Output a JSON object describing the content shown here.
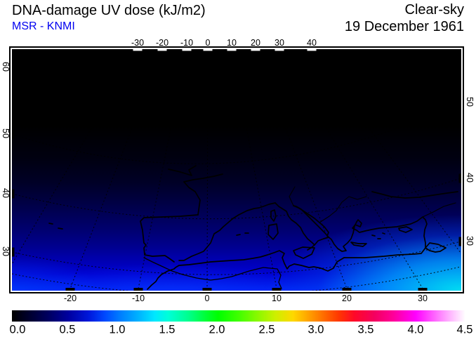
{
  "header": {
    "title": "DNA-damage UV dose (kJ/m2)",
    "source": "MSR - KNMI",
    "condition": "Clear-sky",
    "date": "19 December 1961"
  },
  "chart_data": {
    "type": "heatmap",
    "title": "DNA-damage UV dose (kJ/m2)",
    "source": "MSR - KNMI",
    "condition": "Clear-sky",
    "date": "19 December 1961",
    "region": "Europe / Mediterranean / North Africa, tilted satellite-view projection",
    "units": "kJ/m2",
    "axes": {
      "lon_ticks_top": [
        "-30",
        "-20",
        "-10",
        "0",
        "10",
        "20",
        "30",
        "40"
      ],
      "lon_ticks_bottom": [
        "-20",
        "-10",
        "0",
        "10",
        "20",
        "30"
      ],
      "lat_ticks_left": [
        "60",
        "50",
        "40",
        "30"
      ],
      "lat_ticks_right": [
        "50",
        "40",
        "30"
      ],
      "grid": "dashed graticule lines"
    },
    "colorbar": {
      "min": 0.0,
      "max": 4.5,
      "tick_labels": [
        "0.0",
        "0.5",
        "1.0",
        "1.5",
        "2.0",
        "2.5",
        "3.0",
        "3.5",
        "4.0",
        "4.5"
      ],
      "gradient_stops": [
        {
          "value": 0.0,
          "color": "#000000"
        },
        {
          "value": 0.5,
          "color": "#0000a0"
        },
        {
          "value": 1.0,
          "color": "#0078ff"
        },
        {
          "value": 1.5,
          "color": "#00ffd8"
        },
        {
          "value": 2.0,
          "color": "#00ff00"
        },
        {
          "value": 2.5,
          "color": "#b0f400"
        },
        {
          "value": 3.0,
          "color": "#ff8c00"
        },
        {
          "value": 3.5,
          "color": "#ff0040"
        },
        {
          "value": 4.0,
          "color": "#ff00ff"
        },
        {
          "value": 4.5,
          "color": "#ffffff"
        }
      ]
    },
    "field_summary": {
      "description": "UV dose increases from north to south; near zero (black) above ~50N, dark blue ~0.3 around 40N, blue ~0.7 along North Africa, brightest cyan ~1.3 at the south-east corner of the map",
      "approx_values": [
        {
          "location": "60N",
          "value": 0.0
        },
        {
          "location": "50N",
          "value": 0.05
        },
        {
          "location": "40N",
          "value": 0.3
        },
        {
          "location": "30N",
          "value": 0.7
        },
        {
          "location": "SE corner (~27N, 35E)",
          "value": 1.3
        }
      ]
    }
  }
}
